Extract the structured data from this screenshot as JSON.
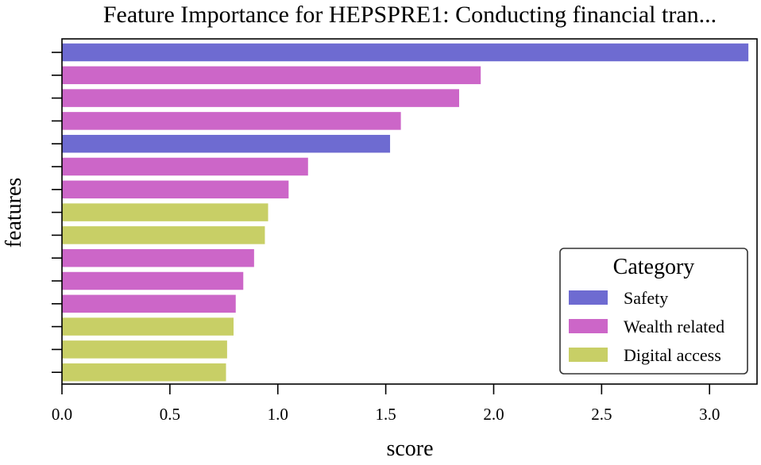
{
  "chart_data": {
    "type": "bar",
    "orientation": "horizontal",
    "title": "Feature Importance for HEPSPRE1: Conducting financial tran...",
    "xlabel": "score",
    "ylabel": "features",
    "xlim": [
      0,
      3.22
    ],
    "x_ticks": [
      "0.0",
      "0.5",
      "1.0",
      "1.5",
      "2.0",
      "2.5",
      "3.0"
    ],
    "grid": false,
    "category_labels_shown": false,
    "values": [
      3.18,
      1.94,
      1.84,
      1.57,
      1.52,
      1.14,
      1.05,
      0.955,
      0.94,
      0.89,
      0.84,
      0.805,
      0.795,
      0.765,
      0.76
    ],
    "bar_categories": [
      "Safety",
      "Wealth related",
      "Wealth related",
      "Wealth related",
      "Safety",
      "Wealth related",
      "Wealth related",
      "Digital access",
      "Digital access",
      "Wealth related",
      "Wealth related",
      "Wealth related",
      "Digital access",
      "Digital access",
      "Digital access"
    ],
    "legend": {
      "title": "Category",
      "placement": "lower-right",
      "entries": [
        {
          "name": "Safety",
          "color": "#6e6bd1"
        },
        {
          "name": "Wealth related",
          "color": "#cc66c8"
        },
        {
          "name": "Digital access",
          "color": "#c8cf66"
        }
      ]
    }
  }
}
